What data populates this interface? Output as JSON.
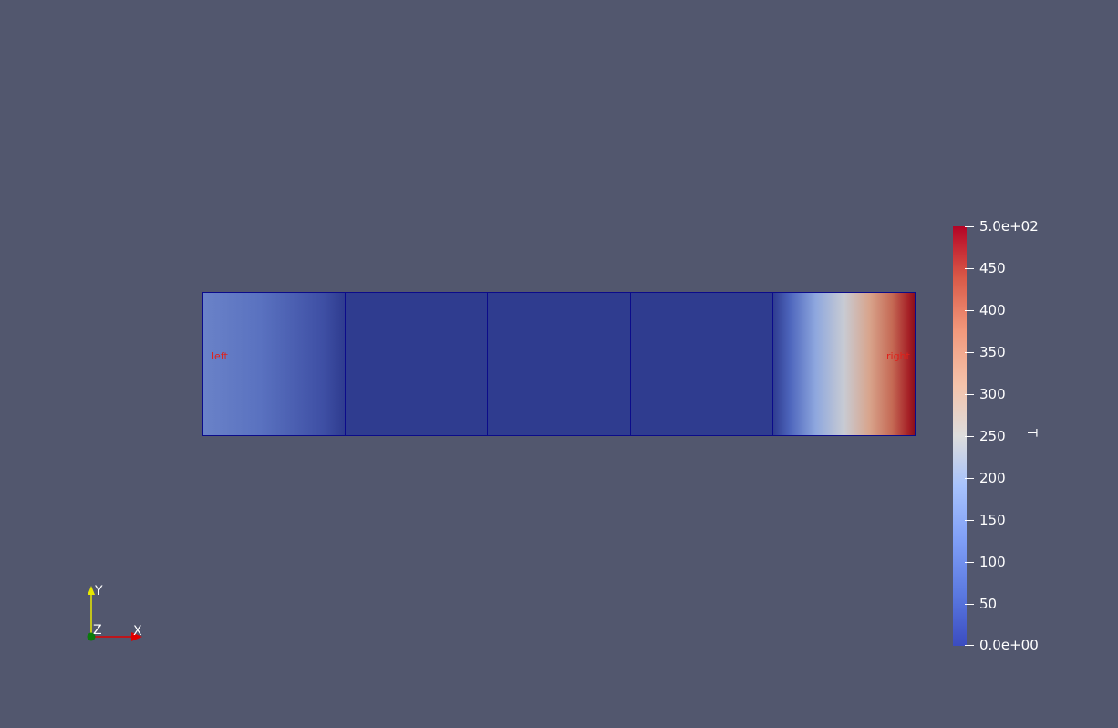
{
  "mesh": {
    "left_label": "left",
    "right_label": "right",
    "cells": 5
  },
  "colorbar": {
    "title": "T",
    "colormap": "cool-to-warm",
    "range": [
      0,
      500
    ],
    "ticks": [
      "5.0e+02",
      "450",
      "400",
      "350",
      "300",
      "250",
      "200",
      "150",
      "100",
      "50",
      "0.0e+00"
    ],
    "colors": {
      "low": "#3b4cc0",
      "mid": "#dddddd",
      "high": "#b40426"
    }
  },
  "axes": {
    "x_label": "X",
    "y_label": "Y",
    "z_label": "Z",
    "x_color": "#e00000",
    "y_color": "#e8e800",
    "z_color": "#0a7a0a"
  },
  "background_color": "#52576e"
}
